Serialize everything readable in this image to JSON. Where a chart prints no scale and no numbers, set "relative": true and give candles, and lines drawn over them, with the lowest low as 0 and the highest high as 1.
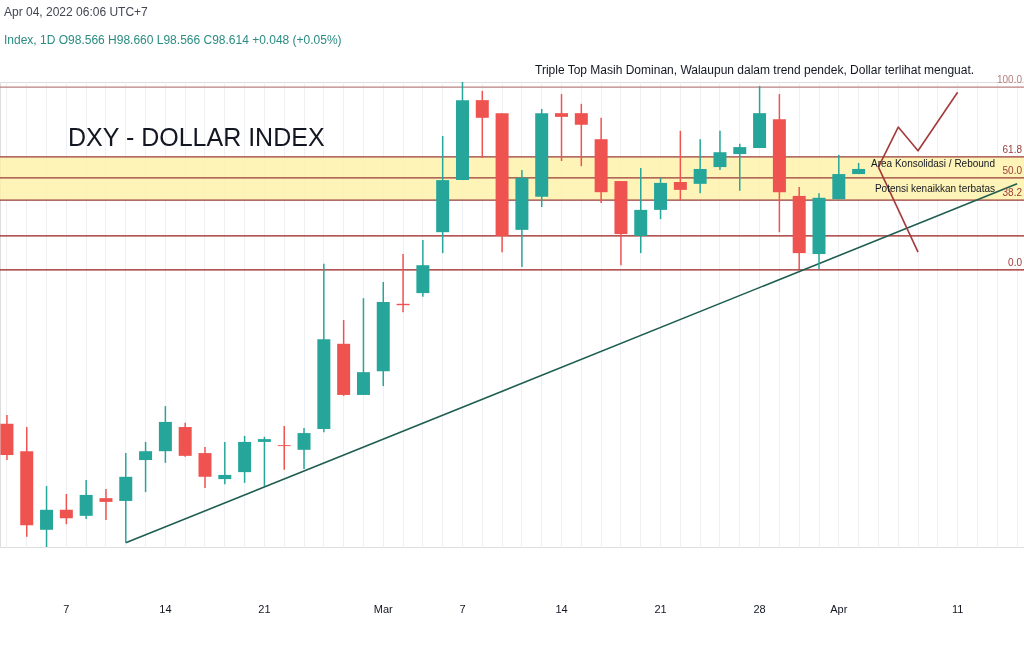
{
  "chart_data": {
    "type": "candlestick",
    "relative": true,
    "title": "DXY - DOLLAR INDEX",
    "categories": [
      null,
      null,
      null,
      "7",
      null,
      null,
      null,
      null,
      "14",
      null,
      null,
      null,
      null,
      "21",
      null,
      null,
      null,
      null,
      null,
      "Mar",
      null,
      null,
      null,
      "7",
      null,
      null,
      null,
      null,
      "14",
      null,
      null,
      null,
      null,
      "21",
      null,
      null,
      null,
      null,
      "28",
      null,
      null,
      null,
      "Apr",
      null,
      null,
      null,
      null,
      null,
      "11",
      null,
      null,
      null
    ],
    "ohlc": [
      [
        0.265,
        0.284,
        0.187,
        0.198
      ],
      [
        0.206,
        0.258,
        0.022,
        0.047
      ],
      [
        0.037,
        0.131,
        0.0,
        0.08
      ],
      [
        0.08,
        0.114,
        0.049,
        0.062
      ],
      [
        0.067,
        0.144,
        0.06,
        0.112
      ],
      [
        0.105,
        0.125,
        0.058,
        0.097
      ],
      [
        0.099,
        0.202,
        0.009,
        0.151
      ],
      [
        0.187,
        0.226,
        0.118,
        0.206
      ],
      [
        0.206,
        0.303,
        0.181,
        0.269
      ],
      [
        0.258,
        0.267,
        0.194,
        0.196
      ],
      [
        0.202,
        0.215,
        0.127,
        0.151
      ],
      [
        0.146,
        0.226,
        0.135,
        0.155
      ],
      [
        0.161,
        0.239,
        0.138,
        0.226
      ],
      [
        0.226,
        0.237,
        0.131,
        0.232
      ],
      [
        0.219,
        0.26,
        0.166,
        0.217
      ],
      [
        0.209,
        0.256,
        0.168,
        0.245
      ],
      [
        0.254,
        0.609,
        0.247,
        0.447
      ],
      [
        0.437,
        0.488,
        0.325,
        0.327
      ],
      [
        0.327,
        0.535,
        0.327,
        0.376
      ],
      [
        0.378,
        0.57,
        0.346,
        0.527
      ],
      [
        0.523,
        0.63,
        0.505,
        0.52
      ],
      [
        0.546,
        0.66,
        0.538,
        0.606
      ],
      [
        0.677,
        0.884,
        0.632,
        0.789
      ],
      [
        0.789,
        1.0,
        0.789,
        0.961
      ],
      [
        0.961,
        0.981,
        0.837,
        0.923
      ],
      [
        0.933,
        0.933,
        0.634,
        0.669
      ],
      [
        0.682,
        0.811,
        0.602,
        0.794
      ],
      [
        0.753,
        0.942,
        0.731,
        0.933
      ],
      [
        0.933,
        0.974,
        0.83,
        0.925
      ],
      [
        0.933,
        0.953,
        0.819,
        0.908
      ],
      [
        0.877,
        0.923,
        0.74,
        0.763
      ],
      [
        0.787,
        0.787,
        0.606,
        0.673
      ],
      [
        0.669,
        0.815,
        0.632,
        0.725
      ],
      [
        0.725,
        0.794,
        0.705,
        0.783
      ],
      [
        0.785,
        0.895,
        0.746,
        0.768
      ],
      [
        0.781,
        0.877,
        0.761,
        0.813
      ],
      [
        0.817,
        0.895,
        0.811,
        0.849
      ],
      [
        0.845,
        0.867,
        0.766,
        0.86
      ],
      [
        0.858,
        0.991,
        0.858,
        0.933
      ],
      [
        0.92,
        0.974,
        0.677,
        0.763
      ],
      [
        0.755,
        0.774,
        0.598,
        0.632
      ],
      [
        0.63,
        0.761,
        0.598,
        0.751
      ],
      [
        0.748,
        0.843,
        0.748,
        0.802
      ],
      [
        0.802,
        0.826,
        0.802,
        0.813
      ],
      null,
      null,
      null,
      null,
      null,
      null,
      null,
      null
    ],
    "colors": [
      "#ef5350",
      "#ef5350",
      "#26a69a",
      "#ef5350",
      "#26a69a",
      "#ef5350",
      "#26a69a",
      "#26a69a",
      "#26a69a",
      "#ef5350",
      "#ef5350",
      "#26a69a",
      "#26a69a",
      "#26a69a",
      "#ef5350",
      "#26a69a",
      "#26a69a",
      "#ef5350",
      "#26a69a",
      "#26a69a",
      "#ef5350",
      "#26a69a",
      "#26a69a",
      "#26a69a",
      "#ef5350",
      "#ef5350",
      "#26a69a",
      "#26a69a",
      "#ef5350",
      "#ef5350",
      "#ef5350",
      "#ef5350",
      "#26a69a",
      "#26a69a",
      "#ef5350",
      "#26a69a",
      "#26a69a",
      "#26a69a",
      "#26a69a",
      "#ef5350",
      "#ef5350",
      "#26a69a",
      "#26a69a",
      "#26a69a",
      null,
      null,
      null,
      null,
      null,
      null,
      null,
      null
    ],
    "series": [
      {
        "type": "line",
        "color": "#1e5e50",
        "values": [
          null,
          null,
          null,
          null,
          null,
          null,
          0.009,
          null,
          null,
          null,
          null,
          null,
          null,
          null,
          null,
          null,
          null,
          null,
          null,
          null,
          null,
          null,
          null,
          null,
          null,
          null,
          null,
          null,
          null,
          null,
          null,
          null,
          null,
          null,
          null,
          null,
          null,
          null,
          null,
          null,
          null,
          null,
          null,
          null,
          null,
          null,
          null,
          null,
          null,
          null,
          null,
          0.781
        ]
      },
      {
        "type": "line",
        "color": "#a33a3a",
        "values": [
          null,
          null,
          null,
          null,
          null,
          null,
          null,
          null,
          null,
          null,
          null,
          null,
          null,
          null,
          null,
          null,
          null,
          null,
          null,
          null,
          null,
          null,
          null,
          null,
          null,
          null,
          null,
          null,
          null,
          null,
          null,
          null,
          null,
          null,
          null,
          null,
          null,
          null,
          null,
          null,
          null,
          null,
          null,
          null,
          0.817,
          0.903,
          0.852,
          null,
          0.978,
          null,
          null,
          null
        ]
      },
      {
        "type": "line",
        "color": "#a33a3a",
        "values": [
          null,
          null,
          null,
          null,
          null,
          null,
          null,
          null,
          null,
          null,
          null,
          null,
          null,
          null,
          null,
          null,
          null,
          null,
          null,
          null,
          null,
          null,
          null,
          null,
          null,
          null,
          null,
          null,
          null,
          null,
          null,
          null,
          null,
          null,
          null,
          null,
          null,
          null,
          null,
          null,
          null,
          null,
          null,
          null,
          0.817,
          null,
          0.634,
          null,
          null,
          null,
          null,
          null
        ]
      }
    ],
    "ref_lines": [
      {
        "axis": "y",
        "value": 0.989,
        "color": "#b98080"
      },
      {
        "axis": "y",
        "value": 0.839,
        "color": "#9a3b3b"
      },
      {
        "axis": "y",
        "value": 0.794,
        "color": "#9a3b3b"
      },
      {
        "axis": "y",
        "value": 0.746,
        "color": "#9a3b3b"
      },
      {
        "axis": "y",
        "value": 0.669,
        "color": "#9b1c1c"
      },
      {
        "axis": "y",
        "value": 0.596,
        "color": "#9b1c1c"
      }
    ],
    "bands": [
      {
        "axis": "y",
        "from": 0.746,
        "to": 0.839,
        "color": "#fff1a6"
      }
    ],
    "annotations": [
      "Apr 04, 2022 06:06 UTC+7",
      "Index, 1D  O98.566  H98.660  L98.566  C98.614  +0.048 (+0.05%)",
      "Triple Top Masih Dominan, Walaupun dalam trend pendek, Dollar terlihat menguat.",
      "Area Konsolidasi / Rebound",
      "Potensi kenaikkan terbatas",
      "100.0",
      "61.8",
      "50.0",
      "38.2",
      "0.0"
    ],
    "grid": "x"
  }
}
